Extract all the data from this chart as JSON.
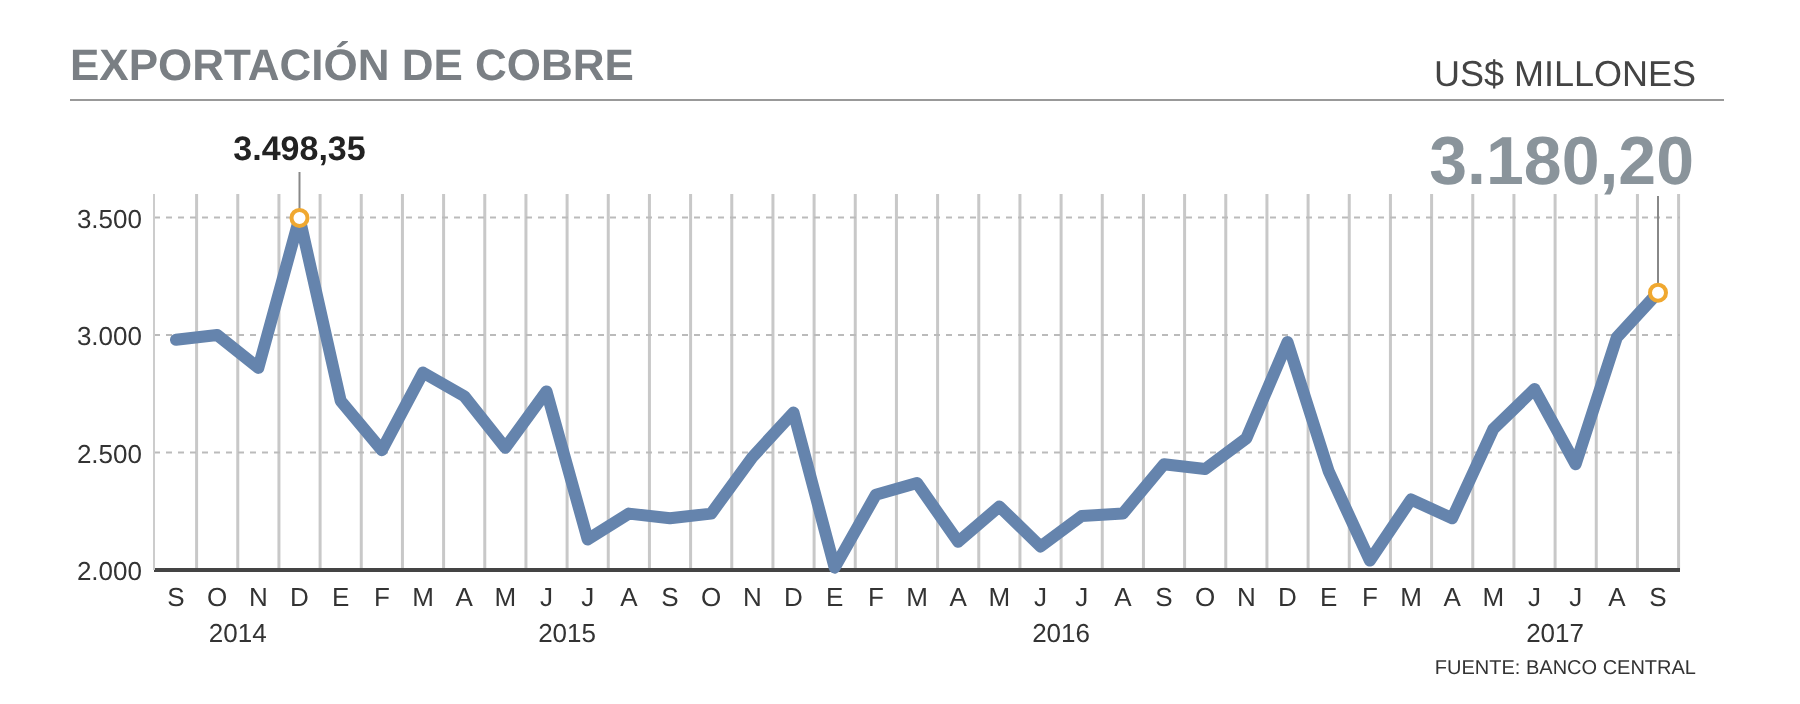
{
  "chart_data": {
    "type": "line",
    "title": "EXPORTACIÓN DE COBRE",
    "ylabel": "US$ MILLONES",
    "categories": [
      "S",
      "O",
      "N",
      "D",
      "E",
      "F",
      "M",
      "A",
      "M",
      "J",
      "J",
      "A",
      "S",
      "O",
      "N",
      "D",
      "E",
      "F",
      "M",
      "A",
      "M",
      "J",
      "J",
      "A",
      "S",
      "O",
      "N",
      "D",
      "E",
      "F",
      "M",
      "A",
      "M",
      "J",
      "J",
      "A",
      "S"
    ],
    "series": [
      {
        "color": "#6584ad",
        "values": [
          2980,
          3000,
          2860,
          3498.35,
          2720,
          2510,
          2840,
          2740,
          2520,
          2760,
          2130,
          2240,
          2220,
          2240,
          2480,
          2670,
          2010,
          2320,
          2370,
          2120,
          2270,
          2100,
          2230,
          2240,
          2450,
          2430,
          2560,
          2970,
          2420,
          2040,
          2300,
          2220,
          2600,
          2770,
          2450,
          2990,
          3180.2
        ],
        "value_labels": [
          null,
          null,
          null,
          "3.498,35",
          null,
          null,
          null,
          null,
          null,
          null,
          null,
          null,
          null,
          null,
          null,
          null,
          null,
          null,
          null,
          null,
          null,
          null,
          null,
          null,
          null,
          null,
          null,
          null,
          null,
          null,
          null,
          null,
          null,
          null,
          null,
          null,
          "3.180,20"
        ]
      }
    ],
    "ylim": [
      2000,
      3600
    ],
    "yticks": [
      {
        "value": 2000,
        "label": "2.000"
      },
      {
        "value": 2500,
        "label": "2.500"
      },
      {
        "value": 3000,
        "label": "3.000"
      },
      {
        "value": 3500,
        "label": "3.500"
      }
    ],
    "grid": true,
    "marker": "none",
    "line_style": "solid",
    "annotations": [
      "2014",
      "2015",
      "2016",
      "2017",
      "FUENTE: BANCO CENTRAL"
    ]
  }
}
